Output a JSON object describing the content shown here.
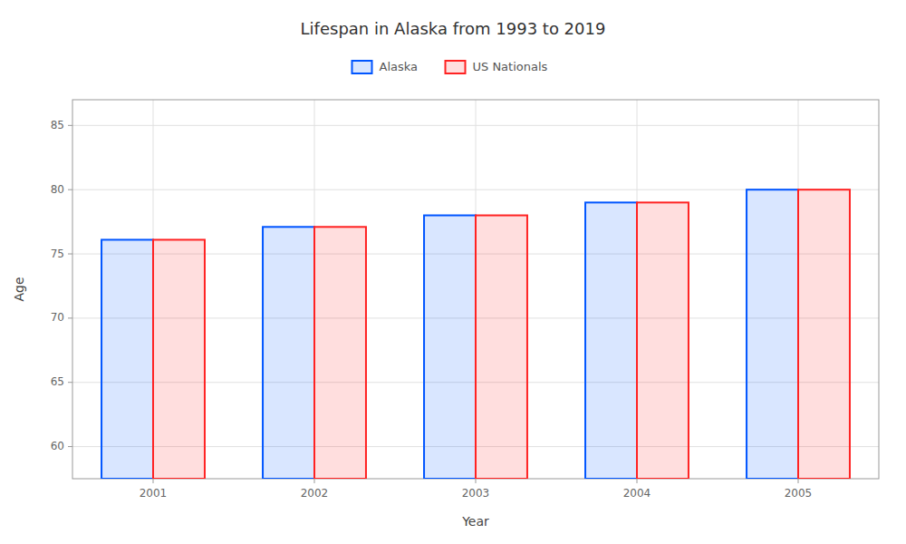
{
  "chart_data": {
    "type": "bar",
    "title": "Lifespan in Alaska from 1993 to 2019",
    "x_label": "Year",
    "y_label": "Age",
    "categories": [
      "2001",
      "2002",
      "2003",
      "2004",
      "2005"
    ],
    "series": [
      {
        "name": "Alaska",
        "color": "#0055ff",
        "values": [
          76.1,
          77.1,
          78.0,
          79.0,
          80.0
        ]
      },
      {
        "name": "US Nationals",
        "color": "#ff2222",
        "values": [
          76.1,
          77.1,
          78.0,
          79.0,
          80.0
        ]
      }
    ],
    "ylim": [
      57.5,
      87
    ],
    "yticks": [
      60,
      65,
      70,
      75,
      80,
      85
    ],
    "grid": true,
    "legend": "top"
  }
}
